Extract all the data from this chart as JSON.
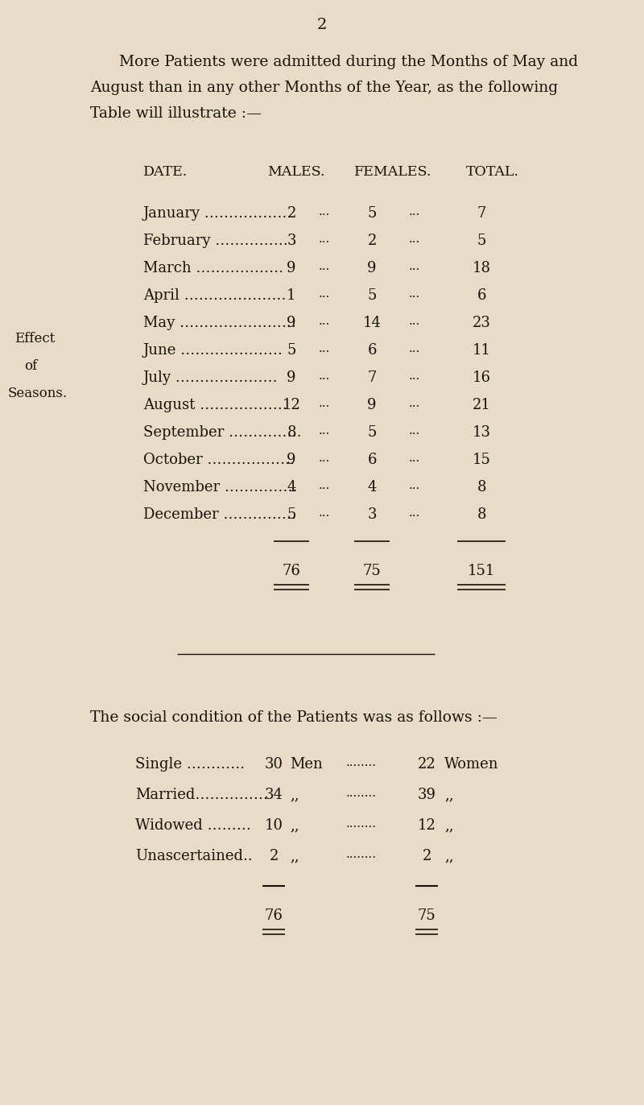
{
  "bg_color": "#e8dcc8",
  "text_color": "#1a1208",
  "page_number": "2",
  "intro_lines": [
    "More Patients were admitted during the Months of May and",
    "August than in any other Months of the Year, as the following",
    "Table will illustrate :—"
  ],
  "table_headers": [
    "DATE.",
    "MALES.",
    "FEMALES.",
    "TOTAL."
  ],
  "months": [
    "January ………………",
    "February ……………",
    "March ………………",
    "April …………………",
    "May ……………………",
    "June …………………",
    "July …………………",
    "August ………………",
    "September ……………",
    "October ………………",
    "November ……………",
    "December ……………"
  ],
  "males": [
    2,
    3,
    9,
    1,
    9,
    5,
    9,
    12,
    8,
    9,
    4,
    5
  ],
  "females": [
    5,
    2,
    9,
    5,
    14,
    6,
    7,
    9,
    5,
    6,
    4,
    3
  ],
  "totals": [
    7,
    5,
    18,
    6,
    23,
    11,
    16,
    21,
    13,
    15,
    8,
    8
  ],
  "males_total": 76,
  "females_total": 75,
  "grand_total": 151,
  "social_heading": "The social condition of the Patients was as follows :—",
  "social_labels": [
    "Single …………",
    "Married……………",
    "Widowed ………",
    "Unascertained.."
  ],
  "social_men": [
    30,
    34,
    10,
    2
  ],
  "social_women": [
    22,
    39,
    12,
    2
  ],
  "social_men_total": 76,
  "social_women_total": 75,
  "sidebar_lines": [
    "Effect",
    "of",
    "Seasons."
  ],
  "dots3": "...",
  "men_word": "Men",
  "women_word": "Women",
  "comma": "„„"
}
